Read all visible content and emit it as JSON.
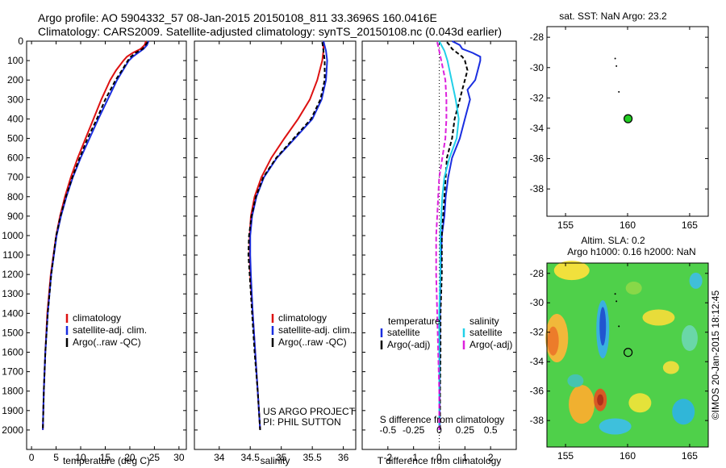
{
  "header": {
    "line1": "Argo profile: AO 5904332_57 08-Jan-2015 20150108_811 33.3696S 160.0416E",
    "line2": "Climatology: CARS2009. Satellite-adjusted climatology: synTS_20150108.nc (0.043d earlier)"
  },
  "colors": {
    "climatology": "#dd1111",
    "satellite": "#1a2ee0",
    "argo": "#000000",
    "sat_salinity": "#22d0e8",
    "argo_adj_salinity": "#dd22dd",
    "map_marker": "#22cc22"
  },
  "chart_data": [
    {
      "type": "line",
      "panel": "temperature",
      "xlabel": "temperature (deg C)",
      "xlim": [
        -1,
        31.5
      ],
      "xticks": [
        0,
        5,
        10,
        15,
        20,
        25,
        30
      ],
      "ylim": [
        0,
        2100
      ],
      "y_reversed": true,
      "yticks": [
        0,
        100,
        200,
        300,
        400,
        500,
        600,
        700,
        800,
        900,
        1000,
        1100,
        1200,
        1300,
        1400,
        1500,
        1600,
        1700,
        1800,
        1900,
        2000
      ],
      "legend": [
        "climatology",
        "satellite-adj. clim.",
        "Argo(..raw -QC)"
      ],
      "series": [
        {
          "name": "climatology",
          "depth": [
            0,
            20,
            40,
            60,
            80,
            100,
            150,
            200,
            300,
            400,
            500,
            600,
            700,
            800,
            900,
            1000,
            1200,
            1400,
            1600,
            1800,
            2000
          ],
          "values": [
            23.3,
            23.0,
            22.2,
            20.6,
            19.4,
            18.7,
            17.2,
            16.0,
            14.2,
            12.6,
            11.0,
            9.4,
            8.0,
            6.8,
            5.8,
            5.0,
            3.9,
            3.2,
            2.8,
            2.5,
            2.3
          ]
        },
        {
          "name": "satellite-adj. clim.",
          "depth": [
            0,
            20,
            40,
            60,
            80,
            100,
            150,
            200,
            300,
            400,
            500,
            600,
            700,
            800,
            900,
            1000,
            1200,
            1400,
            1600,
            1800,
            2000
          ],
          "values": [
            23.8,
            23.5,
            22.8,
            21.7,
            20.6,
            19.8,
            18.6,
            17.4,
            15.5,
            13.6,
            11.8,
            10.0,
            8.4,
            7.1,
            6.0,
            5.1,
            4.0,
            3.3,
            2.8,
            2.5,
            2.3
          ]
        },
        {
          "name": "Argo(..raw -QC)",
          "depth": [
            5,
            20,
            40,
            60,
            80,
            100,
            150,
            200,
            300,
            400,
            500,
            600,
            700,
            800,
            900,
            1000,
            1200,
            1400,
            1600,
            1800,
            2000
          ],
          "values": [
            23.6,
            23.2,
            22.6,
            21.2,
            20.2,
            19.6,
            18.4,
            17.1,
            15.0,
            13.3,
            11.4,
            9.8,
            8.3,
            7.0,
            5.9,
            5.0,
            4.0,
            3.3,
            2.8,
            2.5,
            2.3
          ]
        }
      ]
    },
    {
      "type": "line",
      "panel": "salinity",
      "xlabel": "salinity",
      "xlim": [
        33.6,
        36.2
      ],
      "xticks": [
        34,
        34.5,
        35,
        35.5,
        36
      ],
      "ylim": [
        0,
        2100
      ],
      "y_reversed": true,
      "legend": [
        "climatology",
        "satellite-adj. clim.",
        "Argo(..raw -QC)"
      ],
      "annotations": [
        "US ARGO PROJECT",
        "PI: PHIL SUTTON"
      ],
      "series": [
        {
          "name": "climatology",
          "depth": [
            0,
            50,
            100,
            200,
            300,
            400,
            500,
            600,
            700,
            800,
            900,
            1000,
            1100,
            1200,
            1400,
            1600,
            1800,
            2000
          ],
          "values": [
            35.68,
            35.68,
            35.66,
            35.58,
            35.46,
            35.27,
            35.05,
            34.84,
            34.68,
            34.57,
            34.51,
            34.49,
            34.49,
            34.5,
            34.54,
            34.58,
            34.62,
            34.66
          ]
        },
        {
          "name": "satellite-adj. clim.",
          "depth": [
            0,
            50,
            100,
            200,
            300,
            400,
            500,
            600,
            700,
            800,
            900,
            1000,
            1100,
            1200,
            1400,
            1600,
            1800,
            2000
          ],
          "values": [
            35.68,
            35.72,
            35.74,
            35.72,
            35.65,
            35.5,
            35.22,
            34.93,
            34.72,
            34.6,
            34.53,
            34.5,
            34.5,
            34.51,
            34.54,
            34.58,
            34.62,
            34.66
          ]
        },
        {
          "name": "Argo(..raw -QC)",
          "depth": [
            5,
            50,
            100,
            200,
            300,
            400,
            500,
            600,
            700,
            800,
            900,
            1000,
            1100,
            1200,
            1400,
            1600,
            1800,
            2000
          ],
          "values": [
            35.66,
            35.68,
            35.7,
            35.7,
            35.63,
            35.48,
            35.2,
            34.92,
            34.71,
            34.59,
            34.52,
            34.48,
            34.47,
            34.49,
            34.53,
            34.57,
            34.62,
            34.66
          ]
        }
      ]
    },
    {
      "type": "line",
      "panel": "differences",
      "xlabel_top": "S difference from climatology",
      "xticks_top": [
        -0.5,
        -0.25,
        0,
        0.25,
        0.5
      ],
      "xlabel": "T difference from climatology",
      "xlim": [
        -3,
        3
      ],
      "xticks": [
        -2,
        -1,
        0,
        1,
        2
      ],
      "ylim": [
        0,
        2100
      ],
      "y_reversed": true,
      "legend_titles": [
        "temperature",
        "salinity"
      ],
      "legend": [
        "satellite",
        "Argo(-adj)",
        "satellite",
        "Argo(-adj)"
      ],
      "series": [
        {
          "name": "satellite",
          "variable": "temperature",
          "depth": [
            0,
            20,
            40,
            60,
            80,
            100,
            150,
            200,
            250,
            300,
            400,
            500,
            600,
            700,
            800,
            900,
            1000,
            1200,
            1400,
            1600,
            1800,
            2000
          ],
          "values": [
            0.5,
            0.8,
            0.9,
            1.3,
            1.6,
            1.6,
            1.5,
            1.4,
            1.1,
            1.2,
            1.0,
            0.8,
            0.5,
            0.35,
            0.25,
            0.2,
            0.1,
            0.05,
            0.03,
            0.02,
            0.02,
            0.02
          ]
        },
        {
          "name": "Argo(-adj)",
          "variable": "temperature",
          "depth": [
            5,
            20,
            40,
            60,
            80,
            100,
            150,
            200,
            250,
            300,
            400,
            500,
            600,
            700,
            800,
            900,
            1000,
            1200,
            1400,
            1600,
            1800,
            2000
          ],
          "values": [
            0.3,
            0.4,
            0.5,
            0.7,
            0.9,
            1.0,
            1.1,
            1.0,
            0.9,
            0.8,
            0.6,
            0.5,
            0.3,
            0.25,
            0.2,
            0.15,
            0.1,
            0.1,
            0.05,
            0.05,
            0.03,
            0.03
          ]
        },
        {
          "name": "satellite",
          "variable": "salinity",
          "depth": [
            0,
            50,
            100,
            200,
            300,
            400,
            500,
            600,
            700,
            800,
            900,
            1000,
            1200,
            1400,
            1600,
            1800,
            2000
          ],
          "values": [
            0,
            0.05,
            0.08,
            0.12,
            0.16,
            0.19,
            0.17,
            0.1,
            0.05,
            0.03,
            0.02,
            0.01,
            0.01,
            0,
            0,
            0,
            0
          ]
        },
        {
          "name": "Argo(-adj)",
          "variable": "salinity",
          "depth": [
            5,
            50,
            100,
            200,
            300,
            400,
            500,
            600,
            700,
            800,
            900,
            1000,
            1200,
            1400,
            1600,
            1800,
            2000
          ],
          "values": [
            -0.02,
            0.0,
            0.02,
            0.06,
            0.07,
            0.07,
            0.06,
            0.03,
            0.0,
            -0.01,
            -0.02,
            -0.03,
            -0.03,
            -0.02,
            -0.01,
            0,
            0
          ]
        }
      ]
    },
    {
      "type": "scatter",
      "panel": "sst_map",
      "title": "sat. SST: NaN Argo: 23.2",
      "xlim": [
        153.5,
        166.5
      ],
      "xticks": [
        155,
        160,
        165
      ],
      "ylim": [
        -39.8,
        -27.3
      ],
      "yticks": [
        -28,
        -30,
        -32,
        -34,
        -36,
        -38
      ],
      "track": {
        "x": [
          159.0,
          159.1,
          159.3
        ],
        "y": [
          -29.4,
          -29.9,
          -31.6
        ]
      },
      "profile_location": {
        "x": 160.04,
        "y": -33.37
      }
    },
    {
      "type": "heatmap",
      "panel": "sla_map",
      "title": "Altim. SLA: 0.2",
      "subtitle": "Argo h1000: 0.16 h2000: NaN",
      "xlim": [
        153.5,
        166.5
      ],
      "xticks": [
        155,
        160,
        165
      ],
      "ylim": [
        -39.8,
        -27.3
      ],
      "yticks": [
        -28,
        -30,
        -32,
        -34,
        -36,
        -38
      ],
      "track": {
        "x": [
          159.0,
          159.1,
          159.3
        ],
        "y": [
          -29.4,
          -29.9,
          -31.6
        ]
      },
      "profile_location": {
        "x": 160.04,
        "y": -33.37
      }
    }
  ],
  "credit": "©IMOS 20-Jan-2015 18:12:45"
}
